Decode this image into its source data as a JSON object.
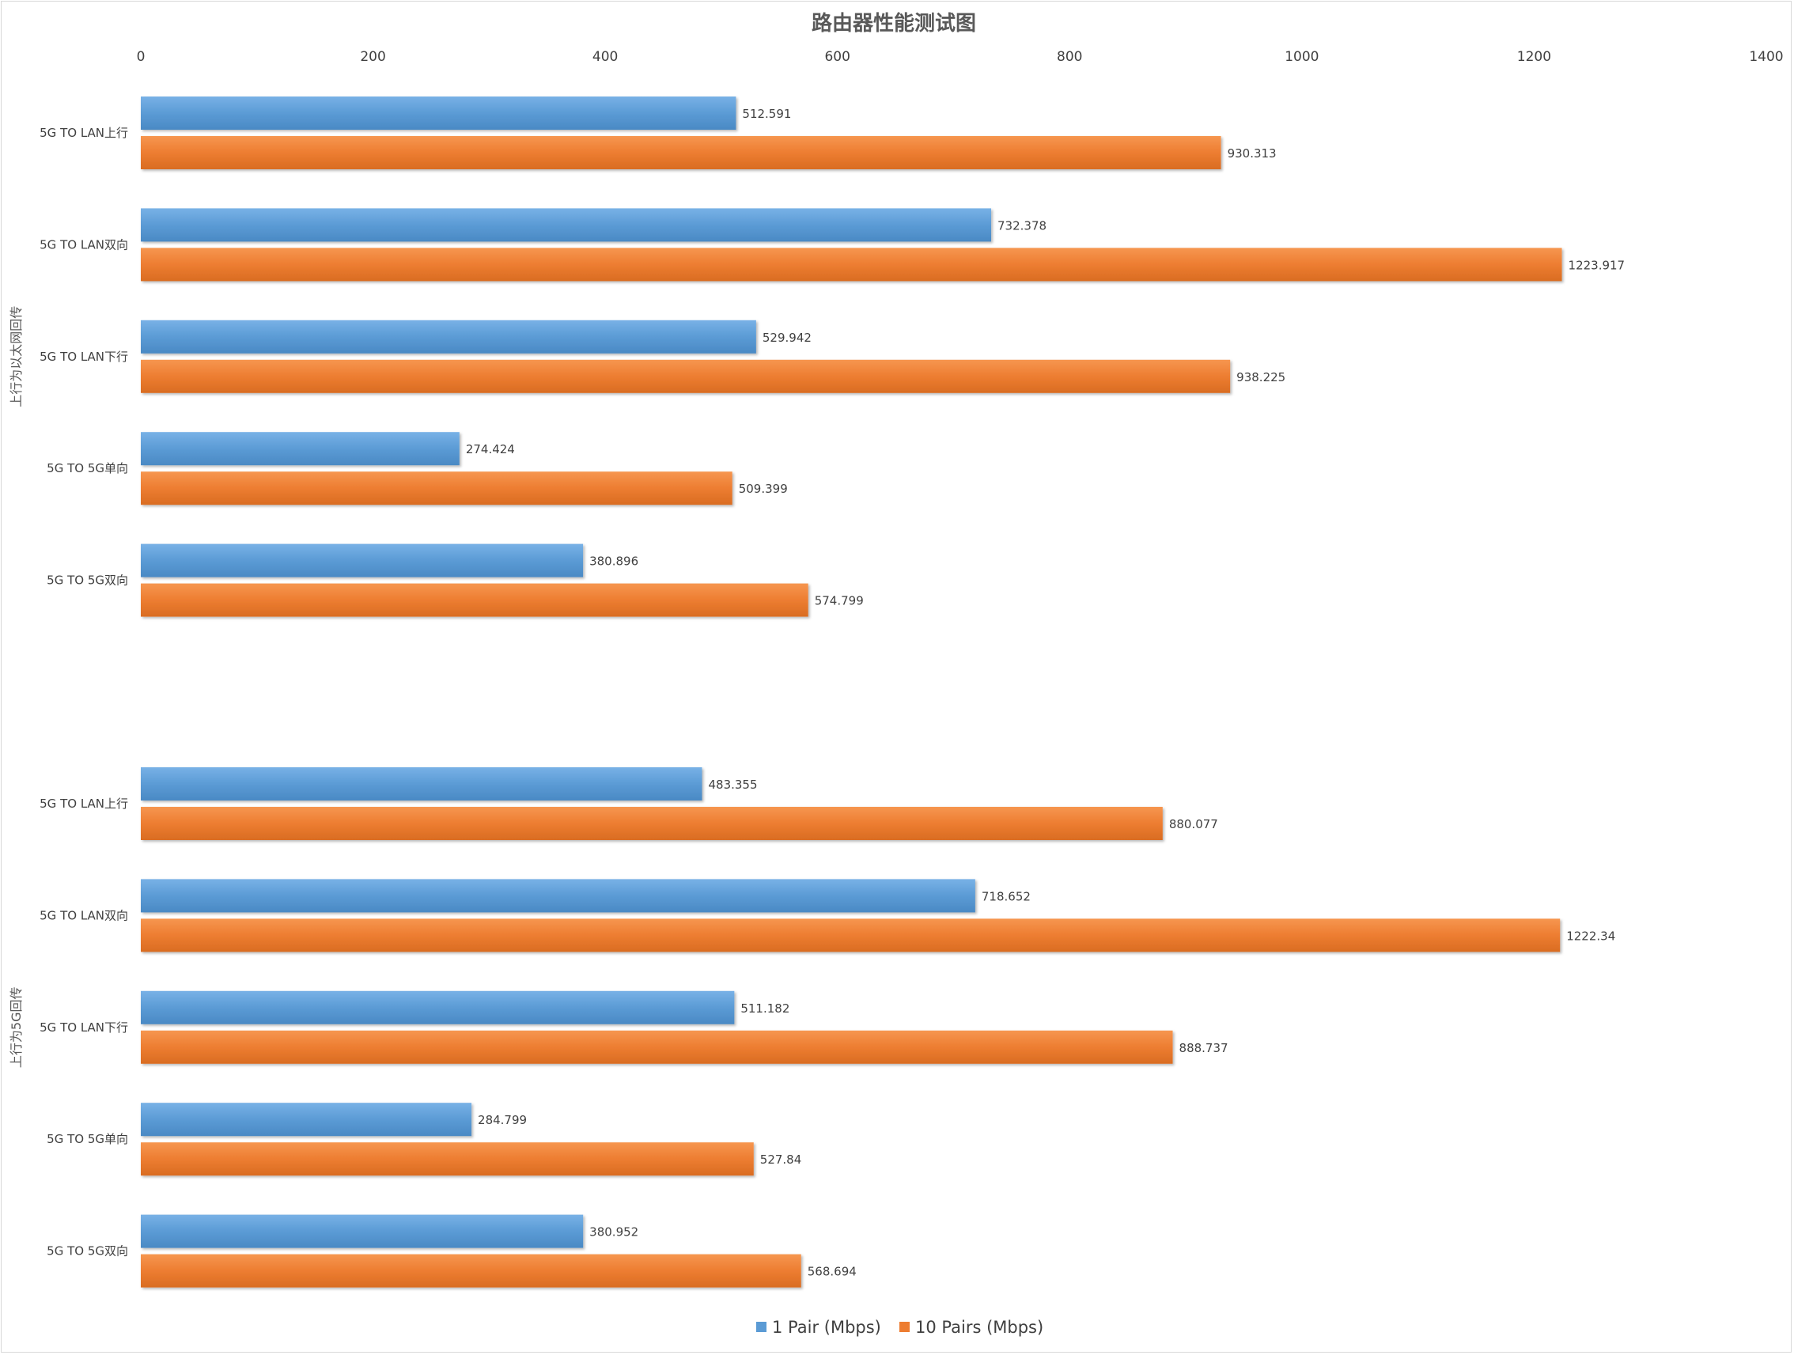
{
  "chart_data": {
    "type": "bar",
    "orientation": "horizontal",
    "title": "路由器性能测试图",
    "xlim": [
      0,
      1400
    ],
    "xticks": [
      0,
      200,
      400,
      600,
      800,
      1000,
      1200,
      1400
    ],
    "grid": false,
    "legend_position": "bottom",
    "groups": [
      {
        "label": "上行为以太网回传",
        "categories": [
          "5G TO LAN上行",
          "5G TO LAN双向",
          "5G TO LAN下行",
          "5G TO 5G单向",
          "5G TO 5G双向"
        ]
      },
      {
        "label": "上行为5G回传",
        "categories": [
          "5G TO LAN上行",
          "5G TO LAN双向",
          "5G TO LAN下行",
          "5G TO 5G单向",
          "5G TO 5G双向"
        ]
      }
    ],
    "series": [
      {
        "name": "1 Pair (Mbps)",
        "color": "#5b9bd5",
        "values": [
          512.591,
          732.378,
          529.942,
          274.424,
          380.896,
          483.355,
          718.652,
          511.182,
          284.799,
          380.952
        ],
        "labels": [
          "512.591",
          "732.378",
          "529.942",
          "274.424",
          "380.896",
          "483.355",
          "718.652",
          "511.182",
          "284.799",
          "380.952"
        ]
      },
      {
        "name": "10  Pairs  (Mbps)",
        "color": "#ed7d31",
        "values": [
          930.313,
          1223.917,
          938.225,
          509.399,
          574.799,
          880.077,
          1222.34,
          888.737,
          527.84,
          568.694
        ],
        "labels": [
          "930.313",
          "1223.917",
          "938.225",
          "509.399",
          "574.799",
          "880.077",
          "1222.34",
          "888.737",
          "527.84",
          "568.694"
        ]
      }
    ]
  }
}
